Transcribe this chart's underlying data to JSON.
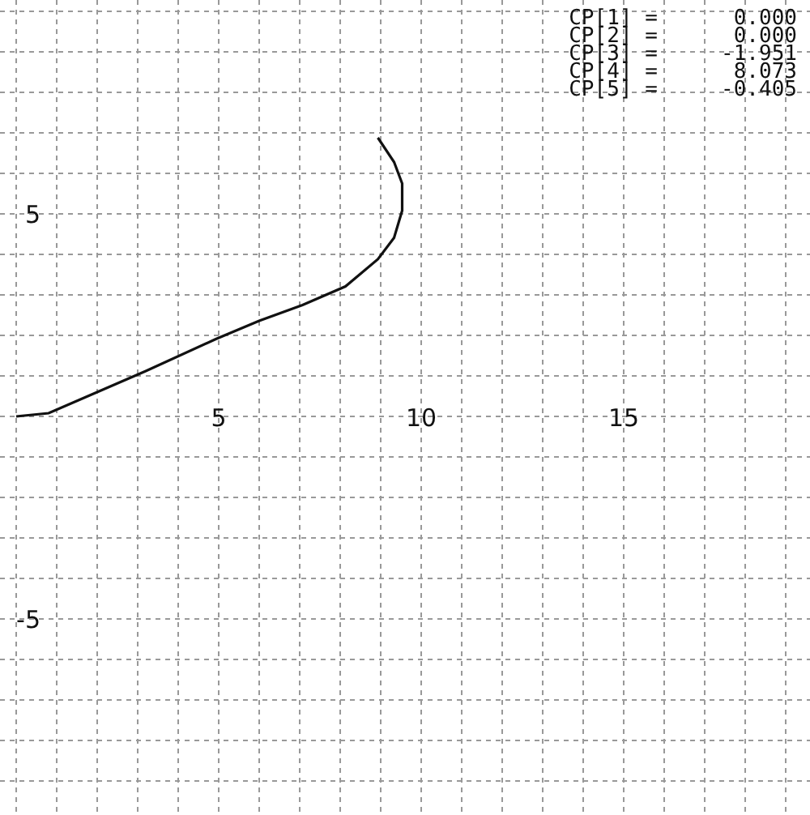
{
  "chart_data": {
    "type": "line",
    "series": [
      {
        "color": "#111111",
        "x": [
          0,
          0.8,
          3.2,
          4.93,
          6,
          7.07,
          8.13,
          8.93,
          9.33,
          9.53,
          9.53,
          9.33,
          8.93
        ],
        "values": [
          0,
          0.08,
          1.12,
          1.91,
          2.36,
          2.75,
          3.21,
          3.88,
          4.41,
          5.08,
          5.75,
          6.28,
          6.88
        ]
      }
    ],
    "xlim": [
      -0.4,
      19.6
    ],
    "ylim": [
      -9.84,
      10.28
    ],
    "xticks": [
      {
        "value": 0,
        "label": null
      },
      {
        "value": 1,
        "label": null
      },
      {
        "value": 2,
        "label": null
      },
      {
        "value": 3,
        "label": null
      },
      {
        "value": 4,
        "label": null
      },
      5,
      {
        "value": 6,
        "label": null
      },
      {
        "value": 7,
        "label": null
      },
      {
        "value": 8,
        "label": null
      },
      {
        "value": 9,
        "label": null
      },
      10,
      {
        "value": 11,
        "label": null
      },
      {
        "value": 12,
        "label": null
      },
      {
        "value": 13,
        "label": null
      },
      {
        "value": 14,
        "label": null
      },
      15,
      {
        "value": 16,
        "label": null
      },
      {
        "value": 17,
        "label": null
      },
      {
        "value": 18,
        "label": null
      },
      {
        "value": 19,
        "label": null
      }
    ],
    "yticks": [
      {
        "value": -9,
        "label": null
      },
      {
        "value": -8,
        "label": null
      },
      {
        "value": -7,
        "label": null
      },
      {
        "value": -6,
        "label": null
      },
      -5,
      {
        "value": -4,
        "label": null
      },
      {
        "value": -3,
        "label": null
      },
      {
        "value": -2,
        "label": null
      },
      {
        "value": -1,
        "label": null
      },
      {
        "value": 0,
        "label": null
      },
      {
        "value": 1,
        "label": null
      },
      {
        "value": 2,
        "label": null
      },
      {
        "value": 3,
        "label": null
      },
      {
        "value": 4,
        "label": null
      },
      5,
      {
        "value": 6,
        "label": null
      },
      {
        "value": 7,
        "label": null
      },
      {
        "value": 8,
        "label": null
      },
      {
        "value": 9,
        "label": null
      },
      {
        "value": 10,
        "label": null
      }
    ],
    "grid": true,
    "marker": "none",
    "line_style": "solid",
    "annotations": [
      "CP[1] =      0.000",
      "CP[2] =      0.000",
      "CP[3] =     -1.951",
      "CP[4] =      8.073",
      "CP[5] =     -0.405"
    ]
  }
}
